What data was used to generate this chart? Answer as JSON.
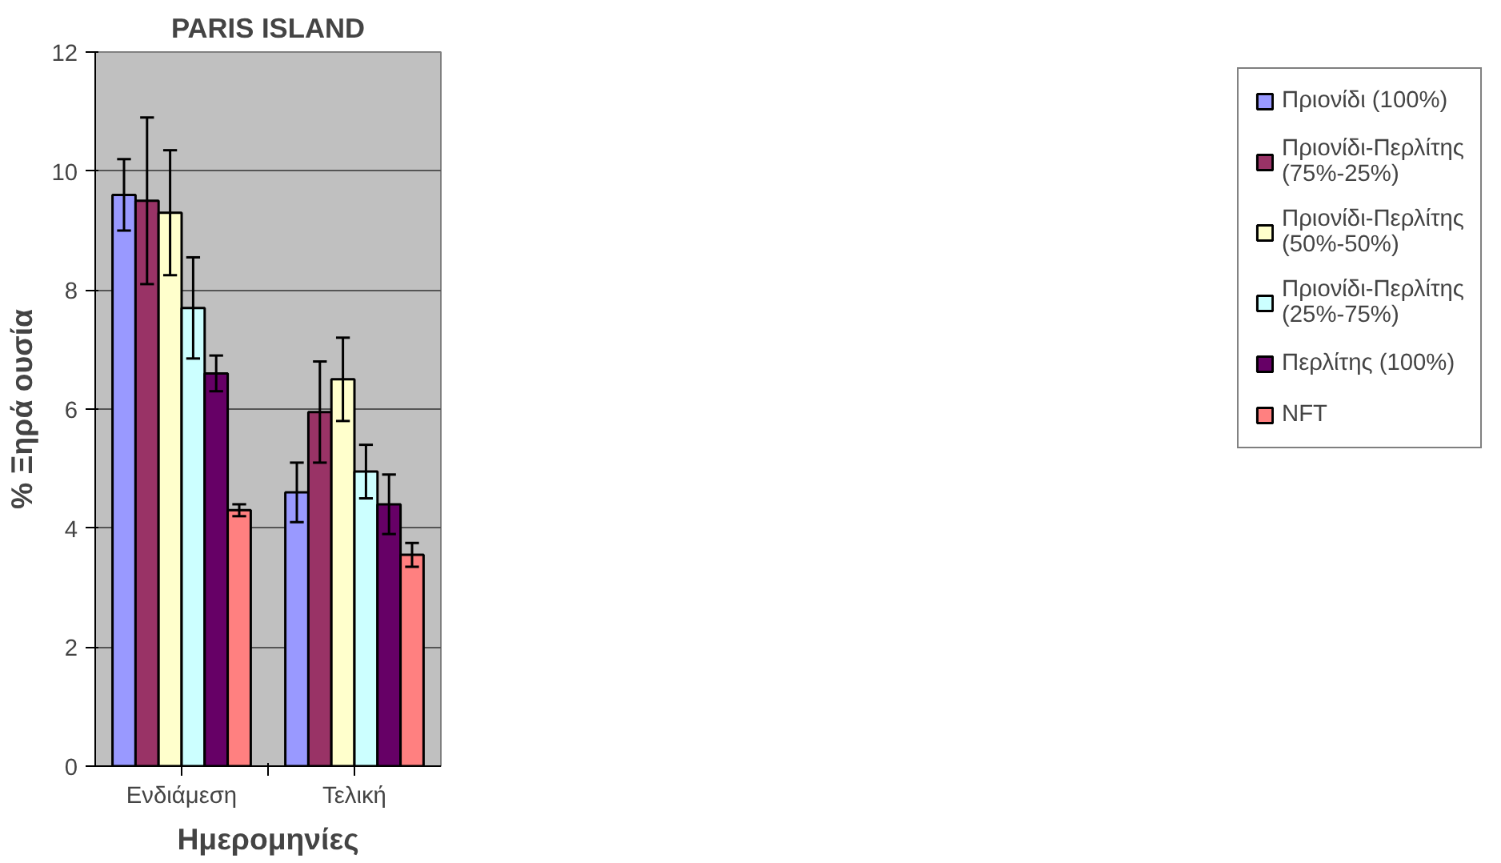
{
  "chart_data": {
    "type": "bar",
    "title": "PARIS ISLAND",
    "xlabel": "Ημερομηνίες",
    "ylabel": "% Ξηρά ουσία",
    "categories": [
      "Ενδιάμεση",
      "Τελική"
    ],
    "series": [
      {
        "name": "Πριονίδι (100%)",
        "color": "#9999ff",
        "values": [
          9.6,
          4.6
        ],
        "errors": [
          0.6,
          0.5
        ]
      },
      {
        "name": "Πριονίδι-Περλίτης (75%-25%)",
        "color": "#993366",
        "values": [
          9.5,
          5.95
        ],
        "errors": [
          1.4,
          0.85
        ]
      },
      {
        "name": "Πριονίδι-Περλίτης (50%-50%)",
        "color": "#ffffcc",
        "values": [
          9.3,
          6.5
        ],
        "errors": [
          1.05,
          0.7
        ]
      },
      {
        "name": "Πριονίδι-Περλίτης (25%-75%)",
        "color": "#ccffff",
        "values": [
          7.7,
          4.95
        ],
        "errors": [
          0.85,
          0.45
        ]
      },
      {
        "name": "Περλίτης (100%)",
        "color": "#660066",
        "values": [
          6.6,
          4.4
        ],
        "errors": [
          0.3,
          0.5
        ]
      },
      {
        "name": "NFT",
        "color": "#ff8080",
        "values": [
          4.3,
          3.55
        ],
        "errors": [
          0.1,
          0.2
        ]
      }
    ],
    "ylim": [
      0,
      12
    ],
    "yticks": [
      0,
      2,
      4,
      6,
      8,
      10,
      12
    ],
    "grid": "y",
    "legend": "right"
  }
}
